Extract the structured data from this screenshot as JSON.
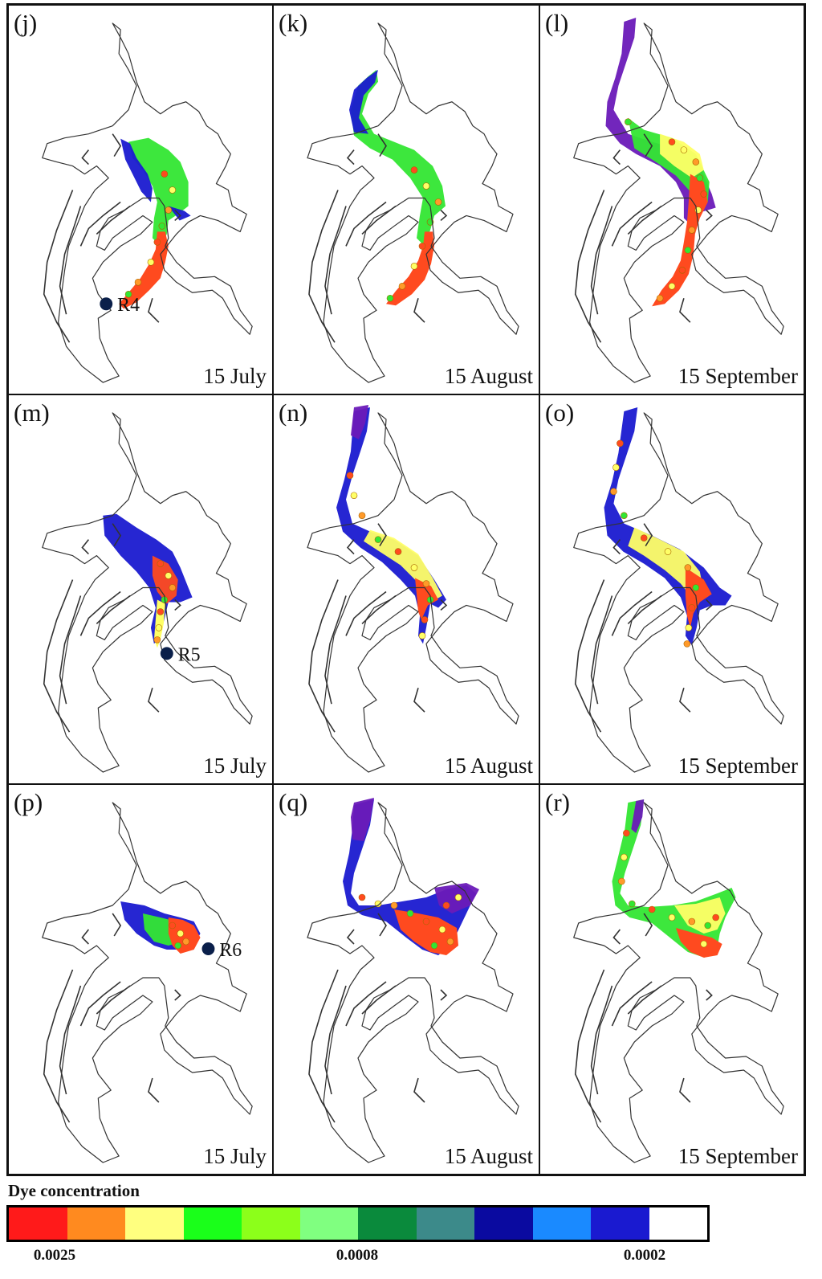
{
  "panels": [
    {
      "label": "(j)",
      "date": "15 July",
      "receptor": "R4",
      "stage": "july",
      "site": "R4"
    },
    {
      "label": "(k)",
      "date": "15 August",
      "receptor": "",
      "stage": "aug",
      "site": "R4"
    },
    {
      "label": "(l)",
      "date": "15 September",
      "receptor": "",
      "stage": "sep",
      "site": "R4"
    },
    {
      "label": "(m)",
      "date": "15 July",
      "receptor": "R5",
      "stage": "july",
      "site": "R5"
    },
    {
      "label": "(n)",
      "date": "15 August",
      "receptor": "",
      "stage": "aug",
      "site": "R5"
    },
    {
      "label": "(o)",
      "date": "15 September",
      "receptor": "",
      "stage": "sep",
      "site": "R5"
    },
    {
      "label": "(p)",
      "date": "15 July",
      "receptor": "R6",
      "stage": "july",
      "site": "R6"
    },
    {
      "label": "(q)",
      "date": "15 August",
      "receptor": "",
      "stage": "aug",
      "site": "R6"
    },
    {
      "label": "(r)",
      "date": "15 September",
      "receptor": "",
      "stage": "sep",
      "site": "R6"
    }
  ],
  "legend": {
    "title": "Dye concentration",
    "colors": [
      "#ff1a1a",
      "#ff8a1f",
      "#ffff7f",
      "#1aff1a",
      "#8cff1a",
      "#80ff80",
      "#0a8a3c",
      "#3c8a8a",
      "#0a0aa0",
      "#1a8aff",
      "#1a1ad0",
      "#ffffff"
    ],
    "ticks": [
      "0.0025",
      "0.0008",
      "0.0002"
    ]
  },
  "colors": {
    "high": "#ff4a1f",
    "mid": "#ffff66",
    "low_green": "#33e633",
    "low_blue": "#1a1ad0",
    "lowest": "#6a1ab8",
    "receptor": "#0a1f4a",
    "outline": "#333333"
  }
}
